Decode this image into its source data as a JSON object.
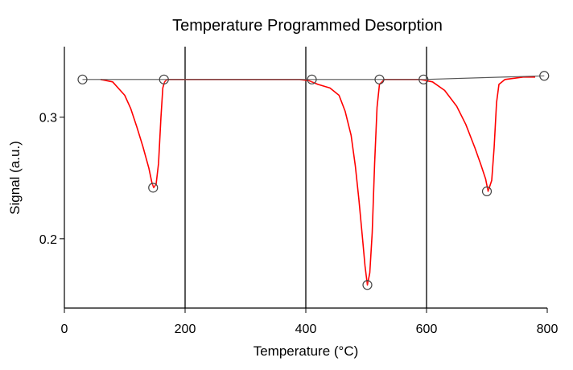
{
  "chart_data": {
    "type": "line",
    "title": "Temperature Programmed Desorption",
    "xlabel": "Temperature (°C)",
    "ylabel": "Signal (a.u.)",
    "xlim": [
      0,
      800
    ],
    "ylim": [
      0.143,
      0.358
    ],
    "x_ticks": [
      0,
      200,
      400,
      600,
      800
    ],
    "x_tick_labels": [
      "0",
      "200",
      "400",
      "600",
      "800"
    ],
    "y_ticks": [
      0.2,
      0.3
    ],
    "y_tick_labels": [
      "0.2",
      "0.3"
    ],
    "grid_x": [
      200,
      400,
      600
    ],
    "series": [
      {
        "color": "#ff0000",
        "x": [
          60,
          80,
          100,
          110,
          120,
          130,
          140,
          145,
          148,
          152,
          156,
          160,
          163,
          166,
          170,
          200,
          300,
          390,
          405,
          420,
          440,
          455,
          465,
          475,
          482,
          488,
          494,
          498,
          502,
          506,
          510,
          514,
          518,
          522,
          530,
          560,
          590,
          610,
          630,
          650,
          665,
          680,
          690,
          698,
          702,
          708,
          712,
          716,
          720,
          730,
          745,
          760,
          780
        ],
        "y": [
          0.331,
          0.329,
          0.318,
          0.307,
          0.292,
          0.276,
          0.258,
          0.246,
          0.242,
          0.245,
          0.262,
          0.3,
          0.324,
          0.329,
          0.331,
          0.331,
          0.331,
          0.331,
          0.33,
          0.327,
          0.324,
          0.318,
          0.305,
          0.285,
          0.26,
          0.232,
          0.2,
          0.178,
          0.162,
          0.172,
          0.205,
          0.262,
          0.308,
          0.327,
          0.331,
          0.331,
          0.331,
          0.329,
          0.322,
          0.309,
          0.294,
          0.275,
          0.261,
          0.249,
          0.239,
          0.248,
          0.275,
          0.312,
          0.327,
          0.331,
          0.332,
          0.333,
          0.333
        ]
      },
      {
        "color": "#555555",
        "x": [
          30,
          165,
          410,
          522,
          595,
          795
        ],
        "y": [
          0.331,
          0.331,
          0.331,
          0.331,
          0.331,
          0.334
        ]
      }
    ],
    "markers": [
      {
        "x": 30,
        "y": 0.331
      },
      {
        "x": 165,
        "y": 0.331
      },
      {
        "x": 147,
        "y": 0.242
      },
      {
        "x": 410,
        "y": 0.331
      },
      {
        "x": 522,
        "y": 0.331
      },
      {
        "x": 502,
        "y": 0.162
      },
      {
        "x": 595,
        "y": 0.331
      },
      {
        "x": 700,
        "y": 0.239
      },
      {
        "x": 795,
        "y": 0.334
      }
    ]
  }
}
